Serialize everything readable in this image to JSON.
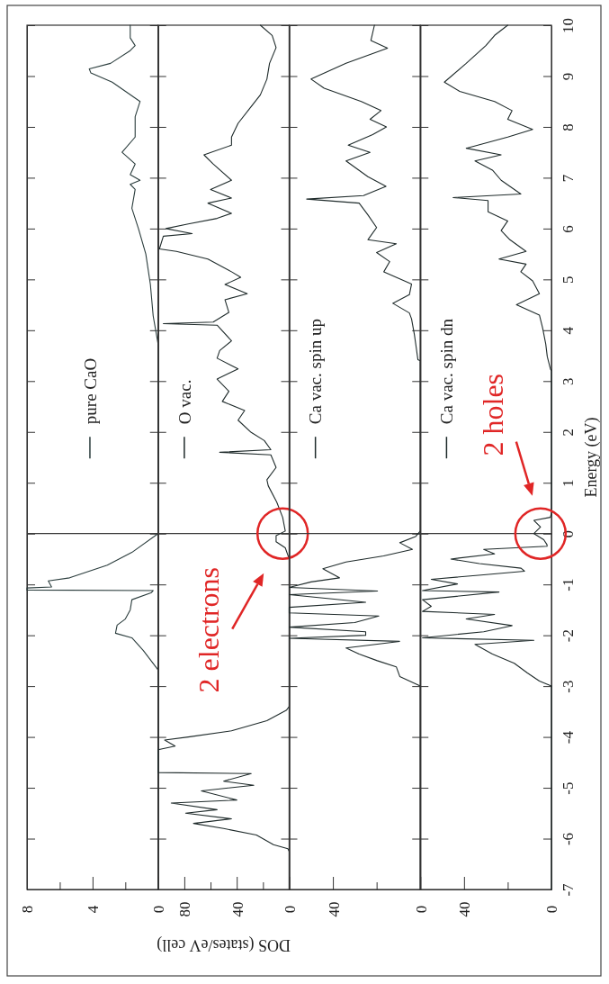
{
  "chart_data": [
    {
      "type": "line",
      "xlim": [
        8,
        0
      ],
      "xticks": [
        8,
        {
          "value": 6,
          "label": null
        },
        4,
        {
          "value": 2,
          "label": null
        },
        0
      ],
      "ylim": [
        -7,
        10
      ],
      "yticks": [
        -7,
        -6,
        -5,
        -4,
        -3,
        -2,
        -1,
        0,
        1,
        2,
        3,
        4,
        5,
        6,
        7,
        8,
        9,
        10
      ],
      "tick_labels": "x",
      "legend": "center",
      "ref_lines": [
        {
          "axis": "y",
          "value": 0,
          "color": "#3a3a3a"
        }
      ],
      "series": [
        {
          "name": "pure CaO",
          "color": "#2b3d3d",
          "values": [
            -7,
            -2.68,
            -2.3,
            -2.05,
            -1.96,
            -1.8,
            -1.68,
            -1.5,
            -1.3,
            -1.16,
            -1.12,
            -1.11,
            -1.07,
            -1.05,
            -0.93,
            -0.87,
            -0.62,
            -0.37,
            0,
            3.73,
            4.28,
            4.9,
            5.5,
            6.0,
            6.4,
            6.77,
            6.87,
            6.95,
            7.06,
            7.27,
            7.5,
            7.8,
            8.2,
            8.5,
            8.88,
            9.06,
            9.14,
            9.25,
            9.5,
            9.6,
            9.75,
            10
          ],
          "x": [
            0,
            0,
            0.9,
            1.6,
            2.6,
            2.5,
            2.0,
            1.7,
            1.6,
            0.4,
            0.3,
            8,
            8,
            6.5,
            6.7,
            5.4,
            3.1,
            1.6,
            0,
            0,
            0.3,
            0.47,
            0.75,
            1.2,
            1.6,
            1.4,
            1.7,
            1.1,
            1.7,
            1.4,
            2.2,
            1.4,
            1.4,
            1.1,
            2.8,
            4.1,
            4.2,
            2.9,
            1.7,
            1.4,
            1.7,
            1.7
          ]
        }
      ]
    },
    {
      "type": "line",
      "xlim": [
        100,
        0
      ],
      "xticks": [
        {
          "value": 100,
          "label": null
        },
        80,
        {
          "value": 60,
          "label": null
        },
        40,
        {
          "value": 20,
          "label": null
        },
        0
      ],
      "ylim": [
        -7,
        10
      ],
      "yticks": [
        -7,
        -6,
        -5,
        -4,
        -3,
        -2,
        -1,
        0,
        1,
        2,
        3,
        4,
        5,
        6,
        7,
        8,
        9,
        10
      ],
      "tick_labels": "x",
      "legend": "left",
      "xlabel": "DOS (states/eV cell)",
      "ref_lines": [
        {
          "axis": "y",
          "value": 0,
          "color": "#3a3a3a"
        }
      ],
      "annotations": [
        {
          "text": "2 electrons",
          "x": 5,
          "y": 0
        }
      ],
      "series": [
        {
          "name": "O vac.",
          "color": "#1f2b2b",
          "values": [
            -7,
            -6.25,
            -6.2,
            -6.12,
            -5.93,
            -5.8,
            -5.7,
            -5.61,
            -5.5,
            -5.43,
            -5.3,
            -5.24,
            -5.06,
            -4.95,
            -4.87,
            -4.72,
            -4.7,
            -4.5,
            -4.25,
            -4.18,
            -4.06,
            -4.0,
            -3.88,
            -3.68,
            -3.47,
            -3.4,
            -0.5,
            -0.28,
            -0.16,
            -0.04,
            0.05,
            0.32,
            0.62,
            0.94,
            1.06,
            1.3,
            1.55,
            1.6,
            1.65,
            1.83,
            1.99,
            2.23,
            2.42,
            2.6,
            2.8,
            3.04,
            3.24,
            3.45,
            3.6,
            3.79,
            4.1,
            4.13,
            4.16,
            4.35,
            4.6,
            4.72,
            4.9,
            5.04,
            5.15,
            5.4,
            5.55,
            5.6,
            5.85,
            5.9,
            6.0,
            6.09,
            6.2,
            6.3,
            6.5,
            6.6,
            6.77,
            6.95,
            7.27,
            7.45,
            7.64,
            7.8,
            8.07,
            8.4,
            8.63,
            8.94,
            9.25,
            9.56,
            9.8,
            10
          ],
          "x": [
            0,
            0,
            1,
            12,
            25,
            50,
            73,
            44,
            79,
            55,
            90,
            40,
            67,
            27,
            50,
            29,
            100,
            100,
            100,
            87,
            95,
            77,
            44,
            17,
            2,
            0,
            0,
            3,
            10,
            10,
            3,
            5,
            9.5,
            16,
            17,
            10,
            14,
            53,
            14,
            19,
            29,
            39,
            34,
            51,
            46,
            55,
            39,
            55,
            53,
            44,
            55,
            96,
            58,
            46,
            49,
            32,
            49,
            37,
            44,
            62,
            86,
            99,
            96,
            74,
            94,
            77,
            55,
            44,
            62,
            44,
            60,
            44,
            58,
            65,
            44,
            44,
            39,
            29,
            22,
            17,
            15,
            10,
            13,
            22
          ]
        }
      ]
    },
    {
      "type": "line",
      "xlim": [
        60,
        0
      ],
      "xticks": [
        40,
        {
          "value": 20,
          "label": null
        },
        0
      ],
      "ylim": [
        -7,
        10
      ],
      "yticks": [
        -7,
        -6,
        -5,
        -4,
        -3,
        -2,
        -1,
        0,
        1,
        2,
        3,
        4,
        5,
        6,
        7,
        8,
        9,
        10
      ],
      "tick_labels": "x",
      "legend": "left",
      "ref_lines": [
        {
          "axis": "y",
          "value": 0,
          "color": "#3a3a3a"
        }
      ],
      "series": [
        {
          "name": "Ca vac. spin up",
          "color": "#1f2b2b",
          "values": [
            -7,
            -3.0,
            -2.81,
            -2.62,
            -2.5,
            -2.37,
            -2.25,
            -2.12,
            -2.06,
            -2.0,
            -1.93,
            -1.84,
            -1.75,
            -1.62,
            -1.56,
            -1.45,
            -1.35,
            -1.2,
            -1.13,
            -1.06,
            -0.95,
            -0.87,
            -0.69,
            -0.56,
            -0.44,
            -0.31,
            -0.18,
            -0.06,
            0.05,
            3.4,
            3.42,
            3.67,
            3.91,
            4.22,
            4.34,
            4.53,
            4.7,
            4.91,
            5.15,
            5.35,
            5.53,
            5.7,
            5.78,
            6.02,
            6.27,
            6.5,
            6.58,
            6.65,
            6.83,
            7.02,
            7.33,
            7.5,
            7.64,
            7.85,
            8.0,
            8.15,
            8.32,
            8.5,
            8.76,
            8.94,
            9.25,
            9.55,
            9.7,
            10
          ],
          "x": [
            0,
            0,
            9.4,
            11,
            19.7,
            28,
            34,
            9.5,
            60,
            25,
            25,
            60,
            30,
            19,
            60,
            60,
            25,
            60,
            19.6,
            60,
            50,
            37,
            44.6,
            34,
            16.8,
            3.6,
            9.4,
            2.2,
            0,
            0,
            1.1,
            1.9,
            2.7,
            4,
            5,
            12.6,
            5,
            4,
            16.7,
            14,
            20,
            11,
            24,
            20,
            24,
            28,
            52,
            26,
            15.7,
            24,
            34,
            23,
            33,
            21.8,
            15.5,
            23,
            18,
            27,
            44,
            50,
            34,
            15,
            22.6,
            21
          ]
        }
      ]
    },
    {
      "type": "line",
      "xlim": [
        60,
        0
      ],
      "xticks": [
        40,
        {
          "value": 20,
          "label": null
        },
        0
      ],
      "ylim": [
        -7,
        10
      ],
      "yticks": [
        -7,
        -6,
        -5,
        -4,
        -3,
        -2,
        -1,
        0,
        1,
        2,
        3,
        4,
        5,
        6,
        7,
        8,
        9,
        10
      ],
      "legend": "left",
      "ylabel": "Energy (eV)",
      "ref_lines": [
        {
          "axis": "y",
          "value": 0,
          "color": "#3a3a3a"
        }
      ],
      "annotations": [
        {
          "text": "2 holes",
          "x": 5,
          "y": 0
        }
      ],
      "series": [
        {
          "name": "Ca vac. spin dn",
          "color": "#1f2b2b",
          "values": [
            -7,
            -3.0,
            -2.9,
            -2.74,
            -2.55,
            -2.37,
            -2.18,
            -2.1,
            -2.05,
            -1.93,
            -1.81,
            -1.68,
            -1.59,
            -1.53,
            -1.43,
            -1.3,
            -1.15,
            -1.12,
            -0.99,
            -0.9,
            -0.81,
            -0.74,
            -0.68,
            -0.59,
            -0.5,
            -0.4,
            -0.31,
            -0.25,
            -0.22,
            -0.12,
            0,
            0.13,
            0.26,
            0.32,
            0.4,
            3.2,
            3.23,
            3.48,
            3.73,
            4.04,
            4.3,
            4.5,
            4.72,
            4.97,
            5.15,
            5.3,
            5.4,
            5.55,
            5.78,
            5.96,
            6.15,
            6.33,
            6.55,
            6.61,
            6.68,
            6.95,
            7.15,
            7.33,
            7.45,
            7.58,
            7.8,
            7.95,
            8.15,
            8.32,
            8.5,
            8.7,
            8.88,
            9.25,
            9.6,
            9.8,
            10
          ],
          "x": [
            0,
            0,
            5.5,
            11,
            17,
            27,
            35,
            8,
            59,
            31,
            18,
            39,
            26,
            59,
            55,
            59,
            24,
            59,
            43,
            55,
            31,
            12.3,
            13.9,
            33,
            46,
            26,
            31,
            2,
            2,
            3.5,
            8,
            5,
            8,
            0.5,
            0,
            0,
            0.4,
            1.9,
            2.6,
            4,
            5.5,
            16,
            5.5,
            8.6,
            14,
            11.6,
            24,
            11.6,
            19,
            23,
            20,
            29,
            29,
            45,
            14,
            23,
            27,
            35,
            23,
            39,
            20,
            8.6,
            20,
            18,
            26,
            42,
            49,
            39,
            30,
            26,
            20
          ]
        }
      ]
    }
  ]
}
